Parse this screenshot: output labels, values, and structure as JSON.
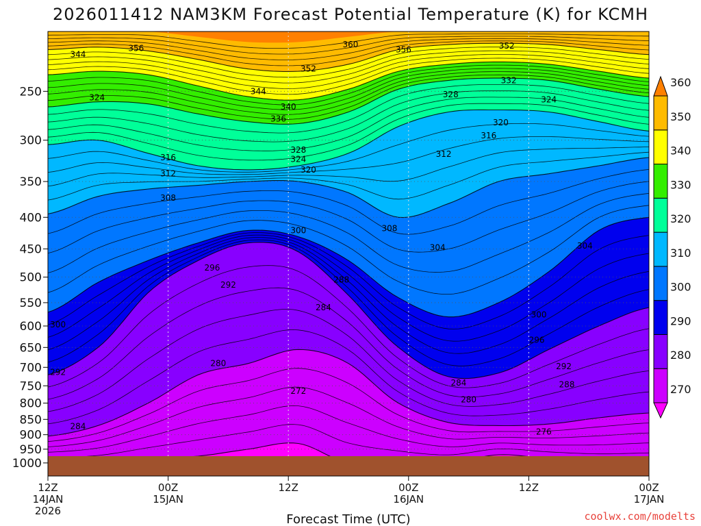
{
  "chart_data": {
    "type": "contour",
    "title": "2026011412 NAM3KM Forecast Potential Temperature (K) for KCMH",
    "xlabel": "Forecast Time (UTC)",
    "ylabel": "",
    "x_ticks": [
      {
        "line1": "12Z",
        "line2": "14JAN",
        "line3": "2026",
        "hours": 0
      },
      {
        "line1": "00Z",
        "line2": "15JAN",
        "line3": "",
        "hours": 12
      },
      {
        "line1": "12Z",
        "line2": "",
        "line3": "",
        "hours": 24
      },
      {
        "line1": "00Z",
        "line2": "16JAN",
        "line3": "",
        "hours": 36
      },
      {
        "line1": "12Z",
        "line2": "",
        "line3": "",
        "hours": 48
      },
      {
        "line1": "00Z",
        "line2": "17JAN",
        "line3": "",
        "hours": 60
      }
    ],
    "xlim_hours": [
      0,
      60
    ],
    "y_ticks": [
      250,
      300,
      350,
      400,
      450,
      500,
      550,
      600,
      650,
      700,
      750,
      800,
      850,
      900,
      950,
      1000
    ],
    "ylim_hpa": [
      1050,
      200
    ],
    "y_scale": "log-pressure",
    "y_inverted": true,
    "ground_pressure_hpa": 975,
    "colorbar": {
      "levels": [
        270,
        280,
        290,
        300,
        310,
        320,
        330,
        340,
        350,
        360
      ],
      "colors": [
        "#ff00ff",
        "#cc00ff",
        "#8800ff",
        "#0000ee",
        "#0077ff",
        "#00b8ff",
        "#00ff99",
        "#33ee00",
        "#ffff00",
        "#ffbb00",
        "#ff8000"
      ],
      "placement": "right"
    },
    "isentrope_profiles": [
      {
        "theta": 270,
        "p": [
          1000,
          1000,
          985,
          975,
          950,
          930,
          1000,
          1000,
          1000,
          970,
          985,
          1000,
          1000
        ]
      },
      {
        "theta": 280,
        "p": [
          905,
          870,
          800,
          720,
          690,
          655,
          690,
          800,
          860,
          870,
          865,
          845,
          830
        ]
      },
      {
        "theta": 290,
        "p": [
          720,
          650,
          530,
          470,
          440,
          455,
          535,
          650,
          725,
          715,
          655,
          600,
          560
        ]
      },
      {
        "theta": 300,
        "p": [
          570,
          510,
          470,
          440,
          420,
          430,
          470,
          540,
          580,
          550,
          490,
          420,
          400
        ]
      },
      {
        "theta": 310,
        "p": [
          395,
          370,
          360,
          355,
          350,
          350,
          365,
          400,
          380,
          350,
          340,
          330,
          320
        ]
      },
      {
        "theta": 320,
        "p": [
          305,
          300,
          315,
          330,
          335,
          330,
          315,
          285,
          270,
          268,
          270,
          280,
          290
        ]
      },
      {
        "theta": 330,
        "p": [
          265,
          260,
          262,
          272,
          280,
          282,
          270,
          248,
          240,
          238,
          240,
          248,
          255
        ]
      },
      {
        "theta": 340,
        "p": [
          235,
          232,
          235,
          245,
          255,
          258,
          248,
          232,
          226,
          224,
          226,
          232,
          238
        ]
      },
      {
        "theta": 350,
        "p": [
          214,
          212,
          215,
          222,
          230,
          232,
          226,
          214,
          210,
          209,
          210,
          214,
          218
        ]
      },
      {
        "theta": 360,
        "p": [
          200,
          200,
          200,
          204,
          208,
          208,
          204,
          200,
          200,
          200,
          200,
          200,
          200
        ]
      }
    ],
    "profile_hours": [
      0,
      5,
      10,
      15,
      20,
      25,
      30,
      35,
      40,
      45,
      50,
      55,
      60
    ],
    "contour_labels": [
      {
        "text": "344",
        "hours": 3.0,
        "p": 218
      },
      {
        "text": "356",
        "hours": 8.8,
        "p": 213
      },
      {
        "text": "360",
        "hours": 30.2,
        "p": 210
      },
      {
        "text": "356",
        "hours": 35.5,
        "p": 214
      },
      {
        "text": "352",
        "hours": 45.8,
        "p": 211
      },
      {
        "text": "352",
        "hours": 26.0,
        "p": 230
      },
      {
        "text": "344",
        "hours": 21.0,
        "p": 250
      },
      {
        "text": "340",
        "hours": 24.0,
        "p": 265
      },
      {
        "text": "336",
        "hours": 23.0,
        "p": 277
      },
      {
        "text": "332",
        "hours": 46.0,
        "p": 240
      },
      {
        "text": "328",
        "hours": 40.2,
        "p": 253
      },
      {
        "text": "324",
        "hours": 4.9,
        "p": 256
      },
      {
        "text": "324",
        "hours": 50.0,
        "p": 258
      },
      {
        "text": "320",
        "hours": 45.2,
        "p": 281
      },
      {
        "text": "316",
        "hours": 44.0,
        "p": 295
      },
      {
        "text": "328",
        "hours": 25.0,
        "p": 311
      },
      {
        "text": "324",
        "hours": 25.0,
        "p": 322
      },
      {
        "text": "320",
        "hours": 26.0,
        "p": 335
      },
      {
        "text": "316",
        "hours": 12.0,
        "p": 320
      },
      {
        "text": "312",
        "hours": 39.5,
        "p": 316
      },
      {
        "text": "312",
        "hours": 12.0,
        "p": 340
      },
      {
        "text": "308",
        "hours": 12.0,
        "p": 372
      },
      {
        "text": "308",
        "hours": 34.1,
        "p": 417
      },
      {
        "text": "300",
        "hours": 25.0,
        "p": 420
      },
      {
        "text": "304",
        "hours": 38.9,
        "p": 448
      },
      {
        "text": "304",
        "hours": 53.6,
        "p": 445
      },
      {
        "text": "296",
        "hours": 16.4,
        "p": 483
      },
      {
        "text": "292",
        "hours": 18.0,
        "p": 515
      },
      {
        "text": "288",
        "hours": 29.3,
        "p": 505
      },
      {
        "text": "284",
        "hours": 27.5,
        "p": 560
      },
      {
        "text": "300",
        "hours": 1.0,
        "p": 597
      },
      {
        "text": "300",
        "hours": 49.0,
        "p": 575
      },
      {
        "text": "296",
        "hours": 48.8,
        "p": 632
      },
      {
        "text": "280",
        "hours": 17.0,
        "p": 690
      },
      {
        "text": "292",
        "hours": 51.5,
        "p": 698
      },
      {
        "text": "292",
        "hours": 1.0,
        "p": 713
      },
      {
        "text": "284",
        "hours": 41.0,
        "p": 742
      },
      {
        "text": "288",
        "hours": 51.8,
        "p": 747
      },
      {
        "text": "272",
        "hours": 25.0,
        "p": 765
      },
      {
        "text": "280",
        "hours": 42.0,
        "p": 790
      },
      {
        "text": "284",
        "hours": 3.0,
        "p": 873
      },
      {
        "text": "276",
        "hours": 49.5,
        "p": 890
      }
    ]
  },
  "credit": "coolwx.com/modelts"
}
